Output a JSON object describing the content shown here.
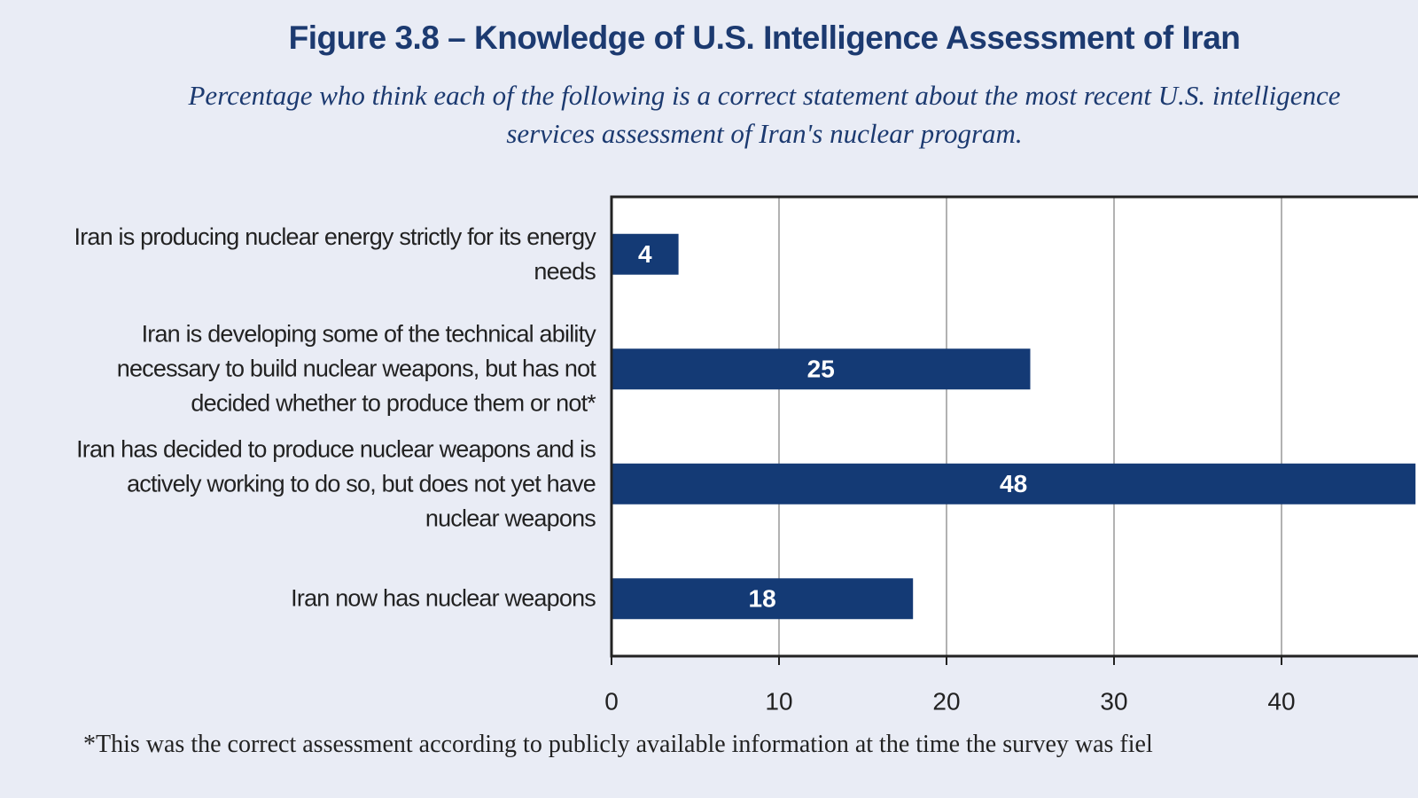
{
  "chart_data": {
    "type": "bar",
    "orientation": "horizontal",
    "title": "Figure 3.8 – Knowledge of U.S. Intelligence Assessment of Iran",
    "subtitle": "Percentage who think each of the following is a correct statement about the most recent U.S. intelligence services assessment of Iran's nuclear program.",
    "categories": [
      "Iran is producing nuclear energy strictly for its energy needs",
      "Iran is developing some of the technical ability necessary to build nuclear weapons, but has not decided whether to produce them or not*",
      "Iran has decided to produce nuclear weapons and is actively working to do so, but does not yet have nuclear weapons",
      "Iran now has nuclear weapons"
    ],
    "values": [
      4,
      25,
      48,
      18
    ],
    "color": "#143a75",
    "xlim": [
      0,
      46.5
    ],
    "xticks": [
      0,
      10,
      20,
      30,
      40
    ],
    "grid": true,
    "footnote": "*This was the correct assessment according to publicly available information at the time the survey was fiel"
  }
}
